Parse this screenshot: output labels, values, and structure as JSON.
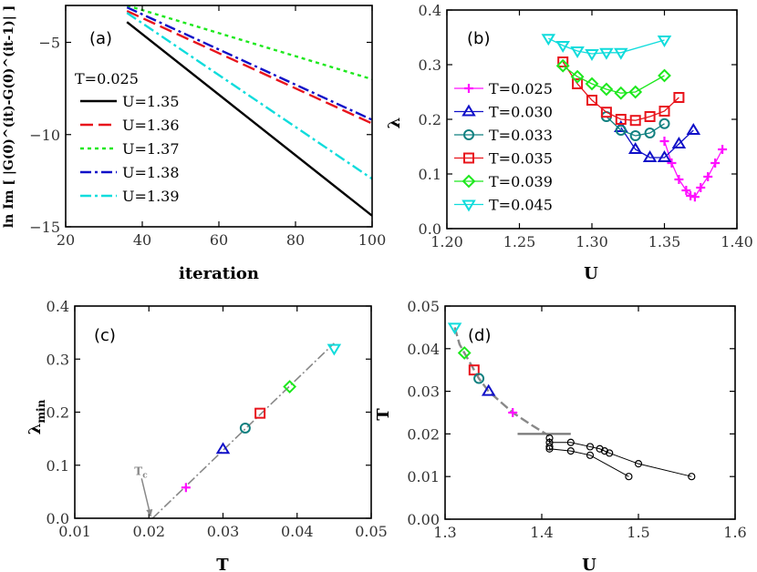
{
  "chart_data": [
    {
      "panel": "(a)",
      "type": "line",
      "xlabel": "iteration",
      "ylabel": "ln Im [ |G(0)^(it)-G(0)^(it-1)| ]",
      "xlim": [
        20,
        100
      ],
      "ylim": [
        -15,
        -3
      ],
      "xticks": [
        20,
        40,
        60,
        80,
        100
      ],
      "yticks": [
        -15,
        -10,
        -5
      ],
      "xtick_labels": [
        "20",
        "40",
        "60",
        "80",
        "100"
      ],
      "ytick_labels": [
        "−15",
        "−10",
        "−5"
      ],
      "legend_title": "T=0.025",
      "series": [
        {
          "name": "U=1.35",
          "color": "#000000",
          "dash": "solid",
          "x": [
            36,
            100
          ],
          "y": [
            -3.9,
            -14.4
          ]
        },
        {
          "name": "U=1.36",
          "color": "#e8141c",
          "dash": "long-dash",
          "x": [
            36,
            100
          ],
          "y": [
            -3.3,
            -9.4
          ]
        },
        {
          "name": "U=1.37",
          "color": "#1ee81e",
          "dash": "dot",
          "x": [
            36,
            100
          ],
          "y": [
            -3.0,
            -7.0
          ]
        },
        {
          "name": "U=1.38",
          "color": "#1010c8",
          "dash": "dash-dot",
          "x": [
            36,
            100
          ],
          "y": [
            -3.1,
            -9.2
          ]
        },
        {
          "name": "U=1.39",
          "color": "#10dcdc",
          "dash": "dash-dot",
          "x": [
            36,
            100
          ],
          "y": [
            -3.4,
            -12.4
          ]
        }
      ]
    },
    {
      "panel": "(b)",
      "type": "line",
      "xlabel": "U",
      "ylabel": "λ",
      "xlim": [
        1.2,
        1.4
      ],
      "ylim": [
        0,
        0.4
      ],
      "xticks": [
        1.2,
        1.25,
        1.3,
        1.35,
        1.4
      ],
      "yticks": [
        0,
        0.1,
        0.2,
        0.3,
        0.4
      ],
      "xtick_labels": [
        "1.20",
        "1.25",
        "1.30",
        "1.35",
        "1.40"
      ],
      "ytick_labels": [
        "0.0",
        "0.1",
        "0.2",
        "0.3",
        "0.4"
      ],
      "series": [
        {
          "name": "T=0.025",
          "color": "#ff10ff",
          "marker": "plus",
          "x": [
            1.35,
            1.355,
            1.36,
            1.365,
            1.368,
            1.371,
            1.375,
            1.38,
            1.385,
            1.39
          ],
          "y": [
            0.16,
            0.12,
            0.09,
            0.07,
            0.06,
            0.058,
            0.075,
            0.095,
            0.12,
            0.145
          ]
        },
        {
          "name": "T=0.030",
          "color": "#1010c8",
          "marker": "triangle-up",
          "x": [
            1.32,
            1.33,
            1.34,
            1.35,
            1.36,
            1.37
          ],
          "y": [
            0.185,
            0.145,
            0.13,
            0.13,
            0.155,
            0.18
          ]
        },
        {
          "name": "T=0.033",
          "color": "#108080",
          "marker": "circle",
          "x": [
            1.31,
            1.32,
            1.33,
            1.34,
            1.35
          ],
          "y": [
            0.205,
            0.18,
            0.17,
            0.175,
            0.192
          ]
        },
        {
          "name": "T=0.035",
          "color": "#e8141c",
          "marker": "square",
          "x": [
            1.28,
            1.29,
            1.3,
            1.31,
            1.32,
            1.33,
            1.34,
            1.35,
            1.36
          ],
          "y": [
            0.305,
            0.265,
            0.235,
            0.213,
            0.2,
            0.198,
            0.205,
            0.215,
            0.24
          ]
        },
        {
          "name": "T=0.039",
          "color": "#1ee81e",
          "marker": "diamond",
          "x": [
            1.28,
            1.29,
            1.3,
            1.31,
            1.32,
            1.33,
            1.35
          ],
          "y": [
            0.298,
            0.278,
            0.265,
            0.255,
            0.248,
            0.25,
            0.28
          ]
        },
        {
          "name": "T=0.045",
          "color": "#10dcdc",
          "marker": "triangle-down",
          "x": [
            1.27,
            1.28,
            1.29,
            1.3,
            1.31,
            1.32,
            1.35
          ],
          "y": [
            0.348,
            0.335,
            0.325,
            0.32,
            0.322,
            0.322,
            0.345
          ]
        }
      ]
    },
    {
      "panel": "(c)",
      "type": "scatter",
      "xlabel": "T",
      "ylabel": "λ_min",
      "xlim": [
        0.01,
        0.05
      ],
      "ylim": [
        0,
        0.4
      ],
      "xticks": [
        0.01,
        0.02,
        0.03,
        0.04,
        0.05
      ],
      "yticks": [
        0,
        0.1,
        0.2,
        0.3,
        0.4
      ],
      "xtick_labels": [
        "0.01",
        "0.02",
        "0.03",
        "0.04",
        "0.05"
      ],
      "ytick_labels": [
        "0.0",
        "0.1",
        "0.2",
        "0.3",
        "0.4"
      ],
      "points": [
        {
          "T": 0.025,
          "lambda": 0.058,
          "color": "#ff10ff",
          "marker": "plus"
        },
        {
          "T": 0.03,
          "lambda": 0.13,
          "color": "#1010c8",
          "marker": "triangle-up"
        },
        {
          "T": 0.033,
          "lambda": 0.17,
          "color": "#108080",
          "marker": "circle"
        },
        {
          "T": 0.035,
          "lambda": 0.198,
          "color": "#e8141c",
          "marker": "square"
        },
        {
          "T": 0.039,
          "lambda": 0.248,
          "color": "#1ee81e",
          "marker": "diamond"
        },
        {
          "T": 0.045,
          "lambda": 0.32,
          "color": "#10dcdc",
          "marker": "triangle-down"
        }
      ],
      "fit_line": {
        "x": [
          0.0205,
          0.045
        ],
        "y": [
          0.0,
          0.33
        ],
        "color": "#888888"
      },
      "annotation": {
        "text": "T",
        "subscript": "c",
        "x": 0.02,
        "arrow_from_y": 0.075,
        "arrow_to_y": 0.0
      }
    },
    {
      "panel": "(d)",
      "type": "line",
      "xlabel": "U",
      "ylabel": "T",
      "xlim": [
        1.3,
        1.6
      ],
      "ylim": [
        0,
        0.05
      ],
      "xticks": [
        1.3,
        1.4,
        1.5,
        1.6
      ],
      "yticks": [
        0,
        0.01,
        0.02,
        0.03,
        0.04,
        0.05
      ],
      "xtick_labels": [
        "1.3",
        "1.4",
        "1.5",
        "1.6"
      ],
      "ytick_labels": [
        "0.00",
        "0.01",
        "0.02",
        "0.03",
        "0.04",
        "0.05"
      ],
      "colored_points": [
        {
          "U": 1.31,
          "T": 0.045,
          "color": "#10dcdc",
          "marker": "triangle-down"
        },
        {
          "U": 1.32,
          "T": 0.039,
          "color": "#1ee81e",
          "marker": "diamond"
        },
        {
          "U": 1.33,
          "T": 0.035,
          "color": "#e8141c",
          "marker": "square"
        },
        {
          "U": 1.335,
          "T": 0.033,
          "color": "#108080",
          "marker": "circle"
        },
        {
          "U": 1.345,
          "T": 0.03,
          "color": "#1010c8",
          "marker": "triangle-up"
        },
        {
          "U": 1.37,
          "T": 0.025,
          "color": "#ff10ff",
          "marker": "plus"
        }
      ],
      "dashed_curve": {
        "U": [
          1.31,
          1.315,
          1.32,
          1.33,
          1.335,
          1.345,
          1.37,
          1.39,
          1.408
        ],
        "T": [
          0.045,
          0.041,
          0.039,
          0.035,
          0.033,
          0.03,
          0.025,
          0.022,
          0.0195
        ],
        "color": "#888888"
      },
      "hline": {
        "U": [
          1.375,
          1.43
        ],
        "T": 0.02,
        "color": "#777777"
      },
      "upper_branch": {
        "U": [
          1.408,
          1.408,
          1.43,
          1.45,
          1.46,
          1.465,
          1.47,
          1.5,
          1.555
        ],
        "T": [
          0.019,
          0.018,
          0.018,
          0.017,
          0.0165,
          0.016,
          0.0155,
          0.013,
          0.01
        ]
      },
      "lower_branch": {
        "U": [
          1.408,
          1.408,
          1.43,
          1.45,
          1.49
        ],
        "T": [
          0.017,
          0.0165,
          0.016,
          0.015,
          0.01
        ]
      }
    }
  ]
}
